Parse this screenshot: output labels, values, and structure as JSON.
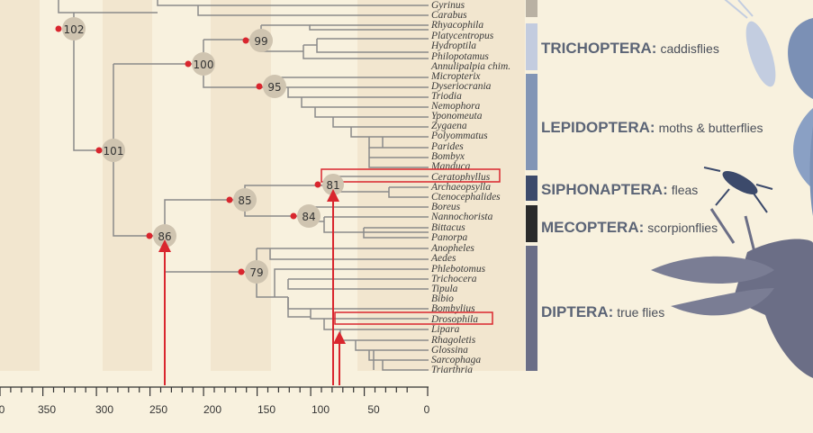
{
  "colors": {
    "background": "#f8f1de",
    "band": "#efe2c8",
    "branch": "#8a8a8a",
    "node_circle": "#cfc4b0",
    "node_dot": "#d9262e",
    "highlight": "#d9262e",
    "axis": "#333333"
  },
  "axis": {
    "ticks": [
      "0",
      "350",
      "300",
      "250",
      "200",
      "150",
      "100",
      "50",
      "0"
    ]
  },
  "taxa": [
    "Gyrinus",
    "Carabus",
    "Rhyacophila",
    "Platycentropus",
    "Hydroptila",
    "Philopotamus",
    "Annulipalpia chim.",
    "Micropterix",
    "Dyseriocrania",
    "Triodia",
    "Nemophora",
    "Yponomeuta",
    "Zygaena",
    "Polyommatus",
    "Parides",
    "Bombyx",
    "Manduca",
    "Ceratophyllus",
    "Archaeopsylla",
    "Ctenocephalides",
    "Boreus",
    "Nannochorista",
    "Bittacus",
    "Panorpa",
    "Anopheles",
    "Aedes",
    "Phlebotomus",
    "Trichocera",
    "Tipula",
    "Bibio",
    "Bombylius",
    "Drosophila",
    "Lipara",
    "Rhagoletis",
    "Glossina",
    "Sarcophaga",
    "Triarthria"
  ],
  "nodes": [
    "102",
    "99",
    "100",
    "95",
    "101",
    "81",
    "85",
    "84",
    "86",
    "79"
  ],
  "orders": [
    {
      "name": "TRICHOPTERA:",
      "common": "caddisflies",
      "color": "#c3ccdf"
    },
    {
      "name": "LEPIDOPTERA:",
      "common": "moths & butterflies",
      "color": "#8295b5"
    },
    {
      "name": "SIPHONAPTERA:",
      "common": "fleas",
      "color": "#3c4a6b"
    },
    {
      "name": "MECOPTERA:",
      "common": "scorpionflies",
      "color": "#2a2a2a"
    },
    {
      "name": "DIPTERA:",
      "common": "true flies",
      "color": "#6b6e86"
    }
  ],
  "icons": [
    "caddisfly-silhouette-icon",
    "butterfly-silhouette-icon",
    "flea-silhouette-icon",
    "fly-silhouette-icon"
  ]
}
